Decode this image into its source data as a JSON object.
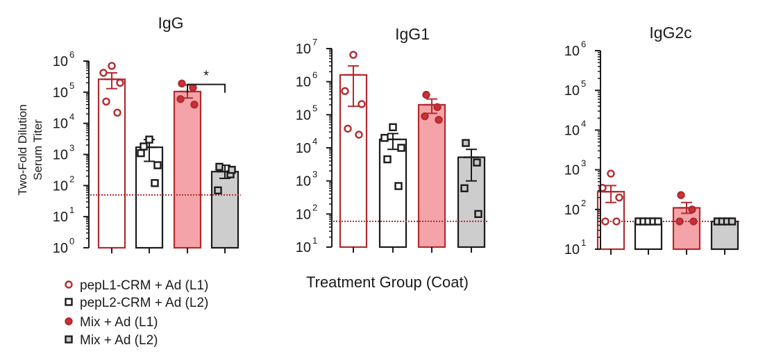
{
  "figure": {
    "ylabel_line1": "Two-Fold Dilution",
    "ylabel_line2": "Serum Titer",
    "xlabel": "Treatment Group (Coat)"
  },
  "legend": [
    {
      "label": "pepL1-CRM + Ad (L1)",
      "fill": "#ffffff",
      "stroke": "#b22a2e",
      "marker": "circle"
    },
    {
      "label": "pepL2-CRM + Ad (L2)",
      "fill": "#ffffff",
      "stroke": "#1a1a1a",
      "marker": "square"
    },
    {
      "label": "Mix + Ad (L1)",
      "fill": "#c8323a",
      "stroke": "#b22a2e",
      "marker": "circle"
    },
    {
      "label": "Mix + Ad (L2)",
      "fill": "#c8c8c8",
      "stroke": "#1a1a1a",
      "marker": "square"
    }
  ],
  "colors": {
    "red": "#b22a2e",
    "red_fill": "#f4a4a8",
    "red_point": "#c8323a",
    "gray_fill": "#cdcdcd",
    "black": "#1a1a1a",
    "detection_line": "#b22a2e"
  },
  "chart_data": [
    {
      "type": "bar",
      "title": "IgG",
      "yscale": "log10",
      "ylim_exp": [
        0,
        6
      ],
      "yticks": [
        {
          "base": "10",
          "exp": "0"
        },
        {
          "base": "10",
          "exp": "1"
        },
        {
          "base": "10",
          "exp": "2"
        },
        {
          "base": "10",
          "exp": "3"
        },
        {
          "base": "10",
          "exp": "4"
        },
        {
          "base": "10",
          "exp": "5"
        },
        {
          "base": "10",
          "exp": "6"
        }
      ],
      "detection_limit": 50,
      "groups": [
        {
          "name": "pepL1-CRM + Ad (L1)",
          "mean": 260000,
          "sem_high": 420000,
          "sem_low": 130000,
          "points": [
            700000,
            420000,
            200000,
            50000,
            22000
          ]
        },
        {
          "name": "pepL2-CRM + Ad (L2)",
          "mean": 1700,
          "sem_high": 3000,
          "sem_low": 600,
          "points": [
            3000,
            1100,
            450,
            1800,
            120
          ]
        },
        {
          "name": "Mix + Ad (L1)",
          "mean": 105000,
          "sem_high": 170000,
          "sem_low": 65000,
          "points": [
            190000,
            140000,
            60000,
            40000
          ]
        },
        {
          "name": "Mix + Ad (L2)",
          "mean": 280,
          "sem_high": 450,
          "sem_low": 170,
          "points": [
            400,
            230,
            70,
            320
          ]
        }
      ],
      "significance": [
        {
          "from": 2,
          "to": 3,
          "label": "*"
        }
      ]
    },
    {
      "type": "bar",
      "title": "IgG1",
      "yscale": "log10",
      "ylim_exp": [
        1,
        7
      ],
      "yticks": [
        {
          "base": "10",
          "exp": "1"
        },
        {
          "base": "10",
          "exp": "2"
        },
        {
          "base": "10",
          "exp": "3"
        },
        {
          "base": "10",
          "exp": "4"
        },
        {
          "base": "10",
          "exp": "5"
        },
        {
          "base": "10",
          "exp": "6"
        },
        {
          "base": "10",
          "exp": "7"
        }
      ],
      "detection_limit": 60,
      "groups": [
        {
          "name": "pepL1-CRM + Ad (L1)",
          "mean": 1600000,
          "sem_high": 3000000,
          "sem_low": 180000,
          "points": [
            6500000,
            520000,
            210000,
            38000,
            25000
          ]
        },
        {
          "name": "pepL2-CRM + Ad (L2)",
          "mean": 18000,
          "sem_high": 27000,
          "sem_low": 9000,
          "points": [
            42000,
            20000,
            10000,
            4500,
            700
          ]
        },
        {
          "name": "Mix + Ad (L1)",
          "mean": 200000,
          "sem_high": 300000,
          "sem_low": 110000,
          "points": [
            400000,
            170000,
            90000,
            70000
          ]
        },
        {
          "name": "Mix + Ad (L2)",
          "mean": 5200,
          "sem_high": 9000,
          "sem_low": 1000,
          "points": [
            14000,
            3600,
            600,
            100
          ]
        }
      ],
      "significance": []
    },
    {
      "type": "bar",
      "title": "IgG2c",
      "yscale": "log10",
      "ylim_exp": [
        1,
        6
      ],
      "yticks": [
        {
          "base": "10",
          "exp": "1"
        },
        {
          "base": "10",
          "exp": "2"
        },
        {
          "base": "10",
          "exp": "3"
        },
        {
          "base": "10",
          "exp": "4"
        },
        {
          "base": "10",
          "exp": "5"
        },
        {
          "base": "10",
          "exp": "6"
        }
      ],
      "detection_limit": 50,
      "groups": [
        {
          "name": "pepL1-CRM + Ad (L1)",
          "mean": 280,
          "sem_high": 400,
          "sem_low": 150,
          "points": [
            800,
            350,
            200,
            50,
            50
          ]
        },
        {
          "name": "pepL2-CRM + Ad (L2)",
          "mean": 50,
          "sem_high": 50,
          "sem_low": 50,
          "points": [
            50,
            50,
            50,
            50,
            50
          ]
        },
        {
          "name": "Mix + Ad (L1)",
          "mean": 110,
          "sem_high": 150,
          "sem_low": 80,
          "points": [
            230,
            100,
            50,
            50
          ]
        },
        {
          "name": "Mix + Ad (L2)",
          "mean": 50,
          "sem_high": 50,
          "sem_low": 50,
          "points": [
            50,
            50,
            50,
            50
          ]
        }
      ],
      "significance": []
    }
  ]
}
